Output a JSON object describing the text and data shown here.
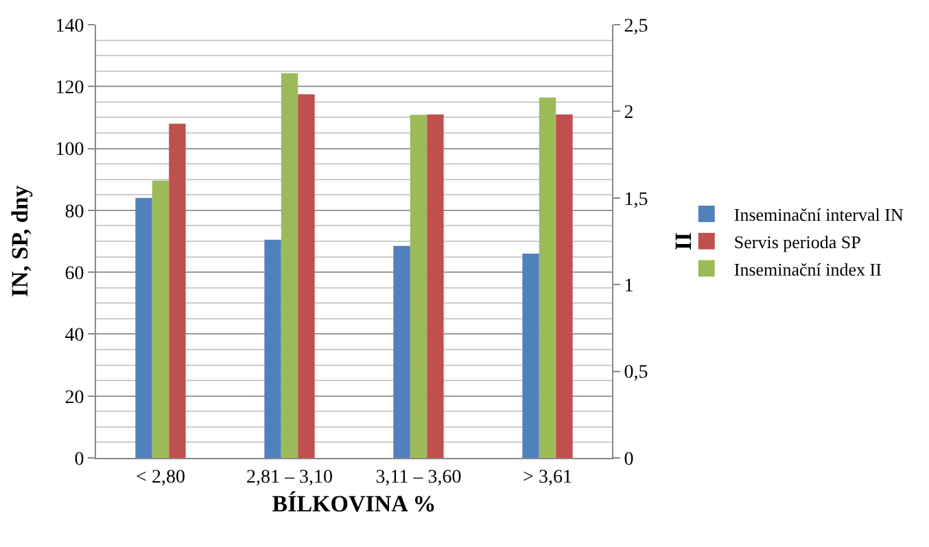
{
  "chart_data": {
    "type": "bar",
    "categories": [
      "< 2,80",
      "2,81 – 3,10",
      "3,11 – 3,60",
      "> 3,61"
    ],
    "xlabel": "BÍLKOVINA %",
    "ylabel": "IN, SP, dny",
    "y2label": "II",
    "series": [
      {
        "name": "Inseminační interval IN",
        "color": "#4f81bd",
        "values": [
          84,
          70.5,
          68.5,
          66
        ]
      },
      {
        "name": "Servis perioda SP",
        "color": "#c0504d",
        "values": [
          108,
          117.5,
          111,
          111
        ]
      },
      {
        "name": "Inseminační index II",
        "color": "#9bbb59",
        "axis": "y2",
        "values": [
          1.6,
          2.22,
          1.98,
          2.08
        ]
      }
    ],
    "ylim": [
      0,
      140
    ],
    "yticks": [
      0,
      20,
      40,
      60,
      80,
      100,
      120,
      140
    ],
    "y2lim": [
      0,
      2.5
    ],
    "y2ticks": [
      0,
      {
        "value": 0.5,
        "label": "0,5"
      },
      1,
      {
        "value": 1.5,
        "label": "1,5"
      },
      2,
      {
        "value": 2.5,
        "label": "2,5"
      }
    ],
    "grid": "y",
    "legend": "right"
  }
}
